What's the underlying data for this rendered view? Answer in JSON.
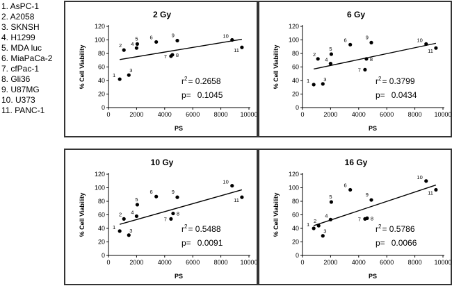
{
  "legend": [
    "1. AsPC-1",
    "2. A2058",
    "3. SKNSH",
    "4. H1299",
    "5. MDA luc",
    "6. MiaPaCa-2",
    "7. cfPac-1",
    "8. Gli36",
    "9. U87MG",
    "10. U373",
    "11. PANC-1"
  ],
  "chart_data": [
    {
      "type": "scatter",
      "title": "2 Gy",
      "xlabel": "PS",
      "ylabel": "% Cell Viability",
      "xlim": [
        0,
        10000
      ],
      "ylim": [
        0,
        120
      ],
      "xticks": [
        0,
        2000,
        4000,
        6000,
        8000,
        10000
      ],
      "yticks": [
        0,
        20,
        40,
        60,
        80,
        100,
        120
      ],
      "points": [
        {
          "label": "1",
          "x": 800,
          "y": 42
        },
        {
          "label": "2",
          "x": 1100,
          "y": 85
        },
        {
          "label": "3",
          "x": 1450,
          "y": 48
        },
        {
          "label": "4",
          "x": 2000,
          "y": 88
        },
        {
          "label": "5",
          "x": 2050,
          "y": 94
        },
        {
          "label": "6",
          "x": 3400,
          "y": 97
        },
        {
          "label": "7",
          "x": 4450,
          "y": 76
        },
        {
          "label": "8",
          "x": 4550,
          "y": 78
        },
        {
          "label": "9",
          "x": 4900,
          "y": 99
        },
        {
          "label": "10",
          "x": 8800,
          "y": 100
        },
        {
          "label": "11",
          "x": 9500,
          "y": 89
        }
      ],
      "fit": {
        "x": [
          800,
          9500
        ],
        "y": [
          71,
          101
        ]
      },
      "r2_label": "r",
      "r2_exp": "2",
      "r2_value": "=  0.2658",
      "p_label": "p=",
      "p_value": "0.1045"
    },
    {
      "type": "scatter",
      "title": "6 Gy",
      "xlabel": "PS",
      "ylabel": "% Cell Viability",
      "xlim": [
        0,
        10000
      ],
      "ylim": [
        0,
        120
      ],
      "xticks": [
        0,
        2000,
        4000,
        6000,
        8000,
        10000
      ],
      "yticks": [
        0,
        20,
        40,
        60,
        80,
        100,
        120
      ],
      "points": [
        {
          "label": "1",
          "x": 800,
          "y": 34
        },
        {
          "label": "2",
          "x": 1100,
          "y": 72
        },
        {
          "label": "3",
          "x": 1450,
          "y": 35
        },
        {
          "label": "4",
          "x": 2000,
          "y": 65
        },
        {
          "label": "5",
          "x": 2050,
          "y": 79
        },
        {
          "label": "6",
          "x": 3400,
          "y": 93
        },
        {
          "label": "7",
          "x": 4450,
          "y": 56
        },
        {
          "label": "8",
          "x": 4550,
          "y": 72
        },
        {
          "label": "9",
          "x": 4900,
          "y": 96
        },
        {
          "label": "10",
          "x": 8800,
          "y": 94
        },
        {
          "label": "11",
          "x": 9500,
          "y": 88
        }
      ],
      "fit": {
        "x": [
          800,
          9500
        ],
        "y": [
          57,
          95
        ]
      },
      "r2_label": "r",
      "r2_exp": "2",
      "r2_value": "=  0.3799",
      "p_label": "p=",
      "p_value": "0.0434"
    },
    {
      "type": "scatter",
      "title": "10 Gy",
      "xlabel": "PS",
      "ylabel": "% Cell Viability",
      "xlim": [
        0,
        10000
      ],
      "ylim": [
        0,
        120
      ],
      "xticks": [
        0,
        2000,
        4000,
        6000,
        8000,
        10000
      ],
      "yticks": [
        0,
        20,
        40,
        60,
        80,
        100,
        120
      ],
      "points": [
        {
          "label": "1",
          "x": 800,
          "y": 36
        },
        {
          "label": "2",
          "x": 1100,
          "y": 54
        },
        {
          "label": "3",
          "x": 1450,
          "y": 30
        },
        {
          "label": "4",
          "x": 2000,
          "y": 58
        },
        {
          "label": "5",
          "x": 2050,
          "y": 75
        },
        {
          "label": "6",
          "x": 3400,
          "y": 87
        },
        {
          "label": "7",
          "x": 4450,
          "y": 54
        },
        {
          "label": "8",
          "x": 4600,
          "y": 62
        },
        {
          "label": "9",
          "x": 4900,
          "y": 86
        },
        {
          "label": "10",
          "x": 8800,
          "y": 103
        },
        {
          "label": "11",
          "x": 9500,
          "y": 86
        }
      ],
      "fit": {
        "x": [
          800,
          9500
        ],
        "y": [
          46,
          97
        ]
      },
      "r2_label": "r",
      "r2_exp": "2",
      "r2_value": "=  0.5488",
      "p_label": "p=",
      "p_value": "0.0091"
    },
    {
      "type": "scatter",
      "title": "16 Gy",
      "xlabel": "PS",
      "ylabel": "% Cell Viability",
      "xlim": [
        0,
        10000
      ],
      "ylim": [
        0,
        120
      ],
      "xticks": [
        0,
        2000,
        4000,
        6000,
        8000,
        10000
      ],
      "yticks": [
        0,
        20,
        40,
        60,
        80,
        100,
        120
      ],
      "points": [
        {
          "label": "1",
          "x": 800,
          "y": 40
        },
        {
          "label": "2",
          "x": 1150,
          "y": 44
        },
        {
          "label": "3",
          "x": 1450,
          "y": 29
        },
        {
          "label": "4",
          "x": 2000,
          "y": 53
        },
        {
          "label": "5",
          "x": 2050,
          "y": 79
        },
        {
          "label": "6",
          "x": 3400,
          "y": 97
        },
        {
          "label": "7",
          "x": 4450,
          "y": 54
        },
        {
          "label": "8",
          "x": 4600,
          "y": 55
        },
        {
          "label": "9",
          "x": 4900,
          "y": 82
        },
        {
          "label": "10",
          "x": 8800,
          "y": 110
        },
        {
          "label": "11",
          "x": 9500,
          "y": 97
        }
      ],
      "fit": {
        "x": [
          800,
          9500
        ],
        "y": [
          44,
          104
        ]
      },
      "r2_label": "r",
      "r2_exp": "2",
      "r2_value": "=  0.5786",
      "p_label": "p=",
      "p_value": "0.0066"
    }
  ]
}
